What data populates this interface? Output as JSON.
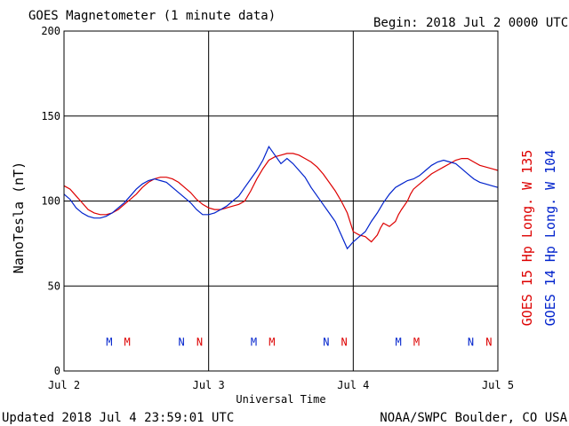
{
  "header": {
    "title": "GOES Magnetometer (1 minute data)",
    "begin": "Begin:  2018 Jul 2 0000 UTC"
  },
  "footer": {
    "updated": "Updated 2018 Jul  4 23:59:01 UTC",
    "source": "NOAA/SWPC Boulder, CO USA"
  },
  "colors": {
    "goes15": "#dd0000",
    "goes14": "#0022cc",
    "grid": "#000000"
  },
  "chart_data": {
    "type": "line",
    "xlabel": "Universal Time",
    "ylabel": "NanoTesla (nT)",
    "xlim": [
      0,
      72
    ],
    "ylim": [
      0,
      200
    ],
    "x_unit": "hours since 2018 Jul 2 0000 UTC",
    "xticks": [
      {
        "x": 0,
        "label": "Jul 2"
      },
      {
        "x": 24,
        "label": "Jul 3"
      },
      {
        "x": 48,
        "label": "Jul 4"
      },
      {
        "x": 72,
        "label": "Jul 5"
      }
    ],
    "yticks": [
      0,
      50,
      100,
      150,
      200
    ],
    "grid": true,
    "legend_position": "right-vertical",
    "series": [
      {
        "name": "GOES 15 Hp  Long. W 135",
        "color": "#dd0000",
        "x": [
          0,
          1,
          2,
          3,
          4,
          5,
          6,
          7,
          8,
          9,
          10,
          11,
          12,
          13,
          14,
          15,
          16,
          17,
          18,
          19,
          20,
          21,
          22,
          23,
          24,
          25,
          26,
          27,
          28,
          29,
          30,
          31,
          32,
          33,
          34,
          35,
          36,
          37,
          38,
          39,
          40,
          41,
          42,
          43,
          44,
          45,
          46,
          47,
          48,
          49,
          50,
          51,
          52,
          52.5,
          53,
          54,
          55,
          55.5,
          56,
          57,
          57.5,
          58,
          59,
          60,
          61,
          62,
          63,
          64,
          65,
          66,
          67,
          68,
          69,
          70,
          71,
          72
        ],
        "values": [
          109,
          107,
          103,
          99,
          95,
          93,
          92,
          92,
          93,
          95,
          98,
          101,
          104,
          108,
          111,
          113,
          114,
          114,
          113,
          111,
          108,
          105,
          101,
          98,
          96,
          95,
          95,
          96,
          97,
          98,
          100,
          106,
          113,
          119,
          124,
          126,
          127,
          128,
          128,
          127,
          125,
          123,
          120,
          116,
          111,
          106,
          100,
          93,
          82,
          80,
          79,
          76,
          80,
          84,
          87,
          85,
          88,
          92,
          95,
          100,
          104,
          107,
          110,
          113,
          116,
          118,
          120,
          122,
          124,
          125,
          125,
          123,
          121,
          120,
          119,
          118
        ]
      },
      {
        "name": "GOES 14 Hp  Long. W 104",
        "color": "#0022cc",
        "x": [
          0,
          1,
          2,
          3,
          4,
          5,
          6,
          7,
          8,
          9,
          10,
          11,
          12,
          13,
          14,
          15,
          16,
          17,
          18,
          19,
          20,
          21,
          22,
          23,
          24,
          25,
          26,
          27,
          28,
          29,
          30,
          31,
          32,
          33,
          34,
          35,
          36,
          37,
          38,
          39,
          40,
          41,
          42,
          43,
          44,
          45,
          46,
          47,
          48,
          49,
          50,
          51,
          52,
          52.5,
          53,
          54,
          55,
          56,
          57,
          58,
          59,
          60,
          61,
          62,
          63,
          64,
          65,
          66,
          67,
          68,
          69,
          70,
          71,
          72
        ],
        "values": [
          104,
          101,
          96,
          93,
          91,
          90,
          90,
          91,
          93,
          96,
          99,
          103,
          107,
          110,
          112,
          113,
          112,
          111,
          108,
          105,
          102,
          99,
          95,
          92,
          92,
          93,
          95,
          97,
          100,
          103,
          108,
          113,
          118,
          124,
          132,
          127,
          122,
          125,
          122,
          118,
          114,
          108,
          103,
          98,
          93,
          88,
          80,
          72,
          76,
          79,
          82,
          88,
          93,
          96,
          99,
          104,
          108,
          110,
          112,
          113,
          115,
          118,
          121,
          123,
          124,
          123,
          122,
          119,
          116,
          113,
          111,
          110,
          109,
          108
        ]
      }
    ],
    "markers": [
      {
        "label": "M",
        "x": 7.5,
        "color": "#0022cc"
      },
      {
        "label": "M",
        "x": 10.5,
        "color": "#dd0000"
      },
      {
        "label": "N",
        "x": 19.5,
        "color": "#0022cc"
      },
      {
        "label": "N",
        "x": 22.5,
        "color": "#dd0000"
      },
      {
        "label": "M",
        "x": 31.5,
        "color": "#0022cc"
      },
      {
        "label": "M",
        "x": 34.5,
        "color": "#dd0000"
      },
      {
        "label": "N",
        "x": 43.5,
        "color": "#0022cc"
      },
      {
        "label": "N",
        "x": 46.5,
        "color": "#dd0000"
      },
      {
        "label": "M",
        "x": 55.5,
        "color": "#0022cc"
      },
      {
        "label": "M",
        "x": 58.5,
        "color": "#dd0000"
      },
      {
        "label": "N",
        "x": 67.5,
        "color": "#0022cc"
      },
      {
        "label": "N",
        "x": 70.5,
        "color": "#dd0000"
      }
    ],
    "marker_y": 17
  }
}
